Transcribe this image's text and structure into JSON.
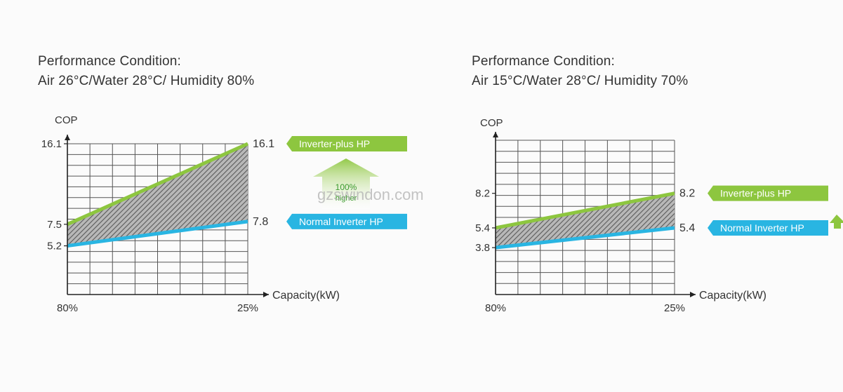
{
  "watermark": "gzswindon.com",
  "badge": {
    "percent": "100%",
    "text": "higher",
    "color": "#8dc63f"
  },
  "colors": {
    "inverter_plus": "#8dc63f",
    "normal_inverter": "#29b5e2",
    "grid": "#555555",
    "hatch": "#5a5a5a"
  },
  "chart_data": [
    {
      "type": "area",
      "condition_title": "Performance Condition:",
      "condition_subtitle": "Air 26°C/Water 28°C/ Humidity 80%",
      "ylabel": "COP",
      "xlabel": "Capacity(kW)",
      "x": [
        "80%",
        "25%"
      ],
      "ylim": [
        0,
        16.1
      ],
      "grid": true,
      "y_ticks": [
        "16.1",
        "7.5",
        "5.2"
      ],
      "series": [
        {
          "name": "Inverter-plus HP",
          "values": [
            7.5,
            16.1
          ],
          "end_label": "16.1",
          "color": "#8dc63f"
        },
        {
          "name": "Normal Inverter HP",
          "values": [
            5.2,
            7.8
          ],
          "end_label": "7.8",
          "color": "#29b5e2"
        }
      ]
    },
    {
      "type": "area",
      "condition_title": "Performance Condition:",
      "condition_subtitle": "Air 15°C/Water 28°C/ Humidity 70%",
      "ylabel": "COP",
      "xlabel": "Capacity(kW)",
      "x": [
        "80%",
        "25%"
      ],
      "ylim": [
        0,
        12.5
      ],
      "grid": true,
      "y_ticks": [
        "8.2",
        "5.4",
        "3.8"
      ],
      "series": [
        {
          "name": "Inverter-plus HP",
          "values": [
            5.4,
            8.2
          ],
          "end_label": "8.2",
          "color": "#8dc63f"
        },
        {
          "name": "Normal Inverter HP",
          "values": [
            3.8,
            5.4
          ],
          "end_label": "5.4",
          "color": "#29b5e2"
        }
      ]
    }
  ]
}
